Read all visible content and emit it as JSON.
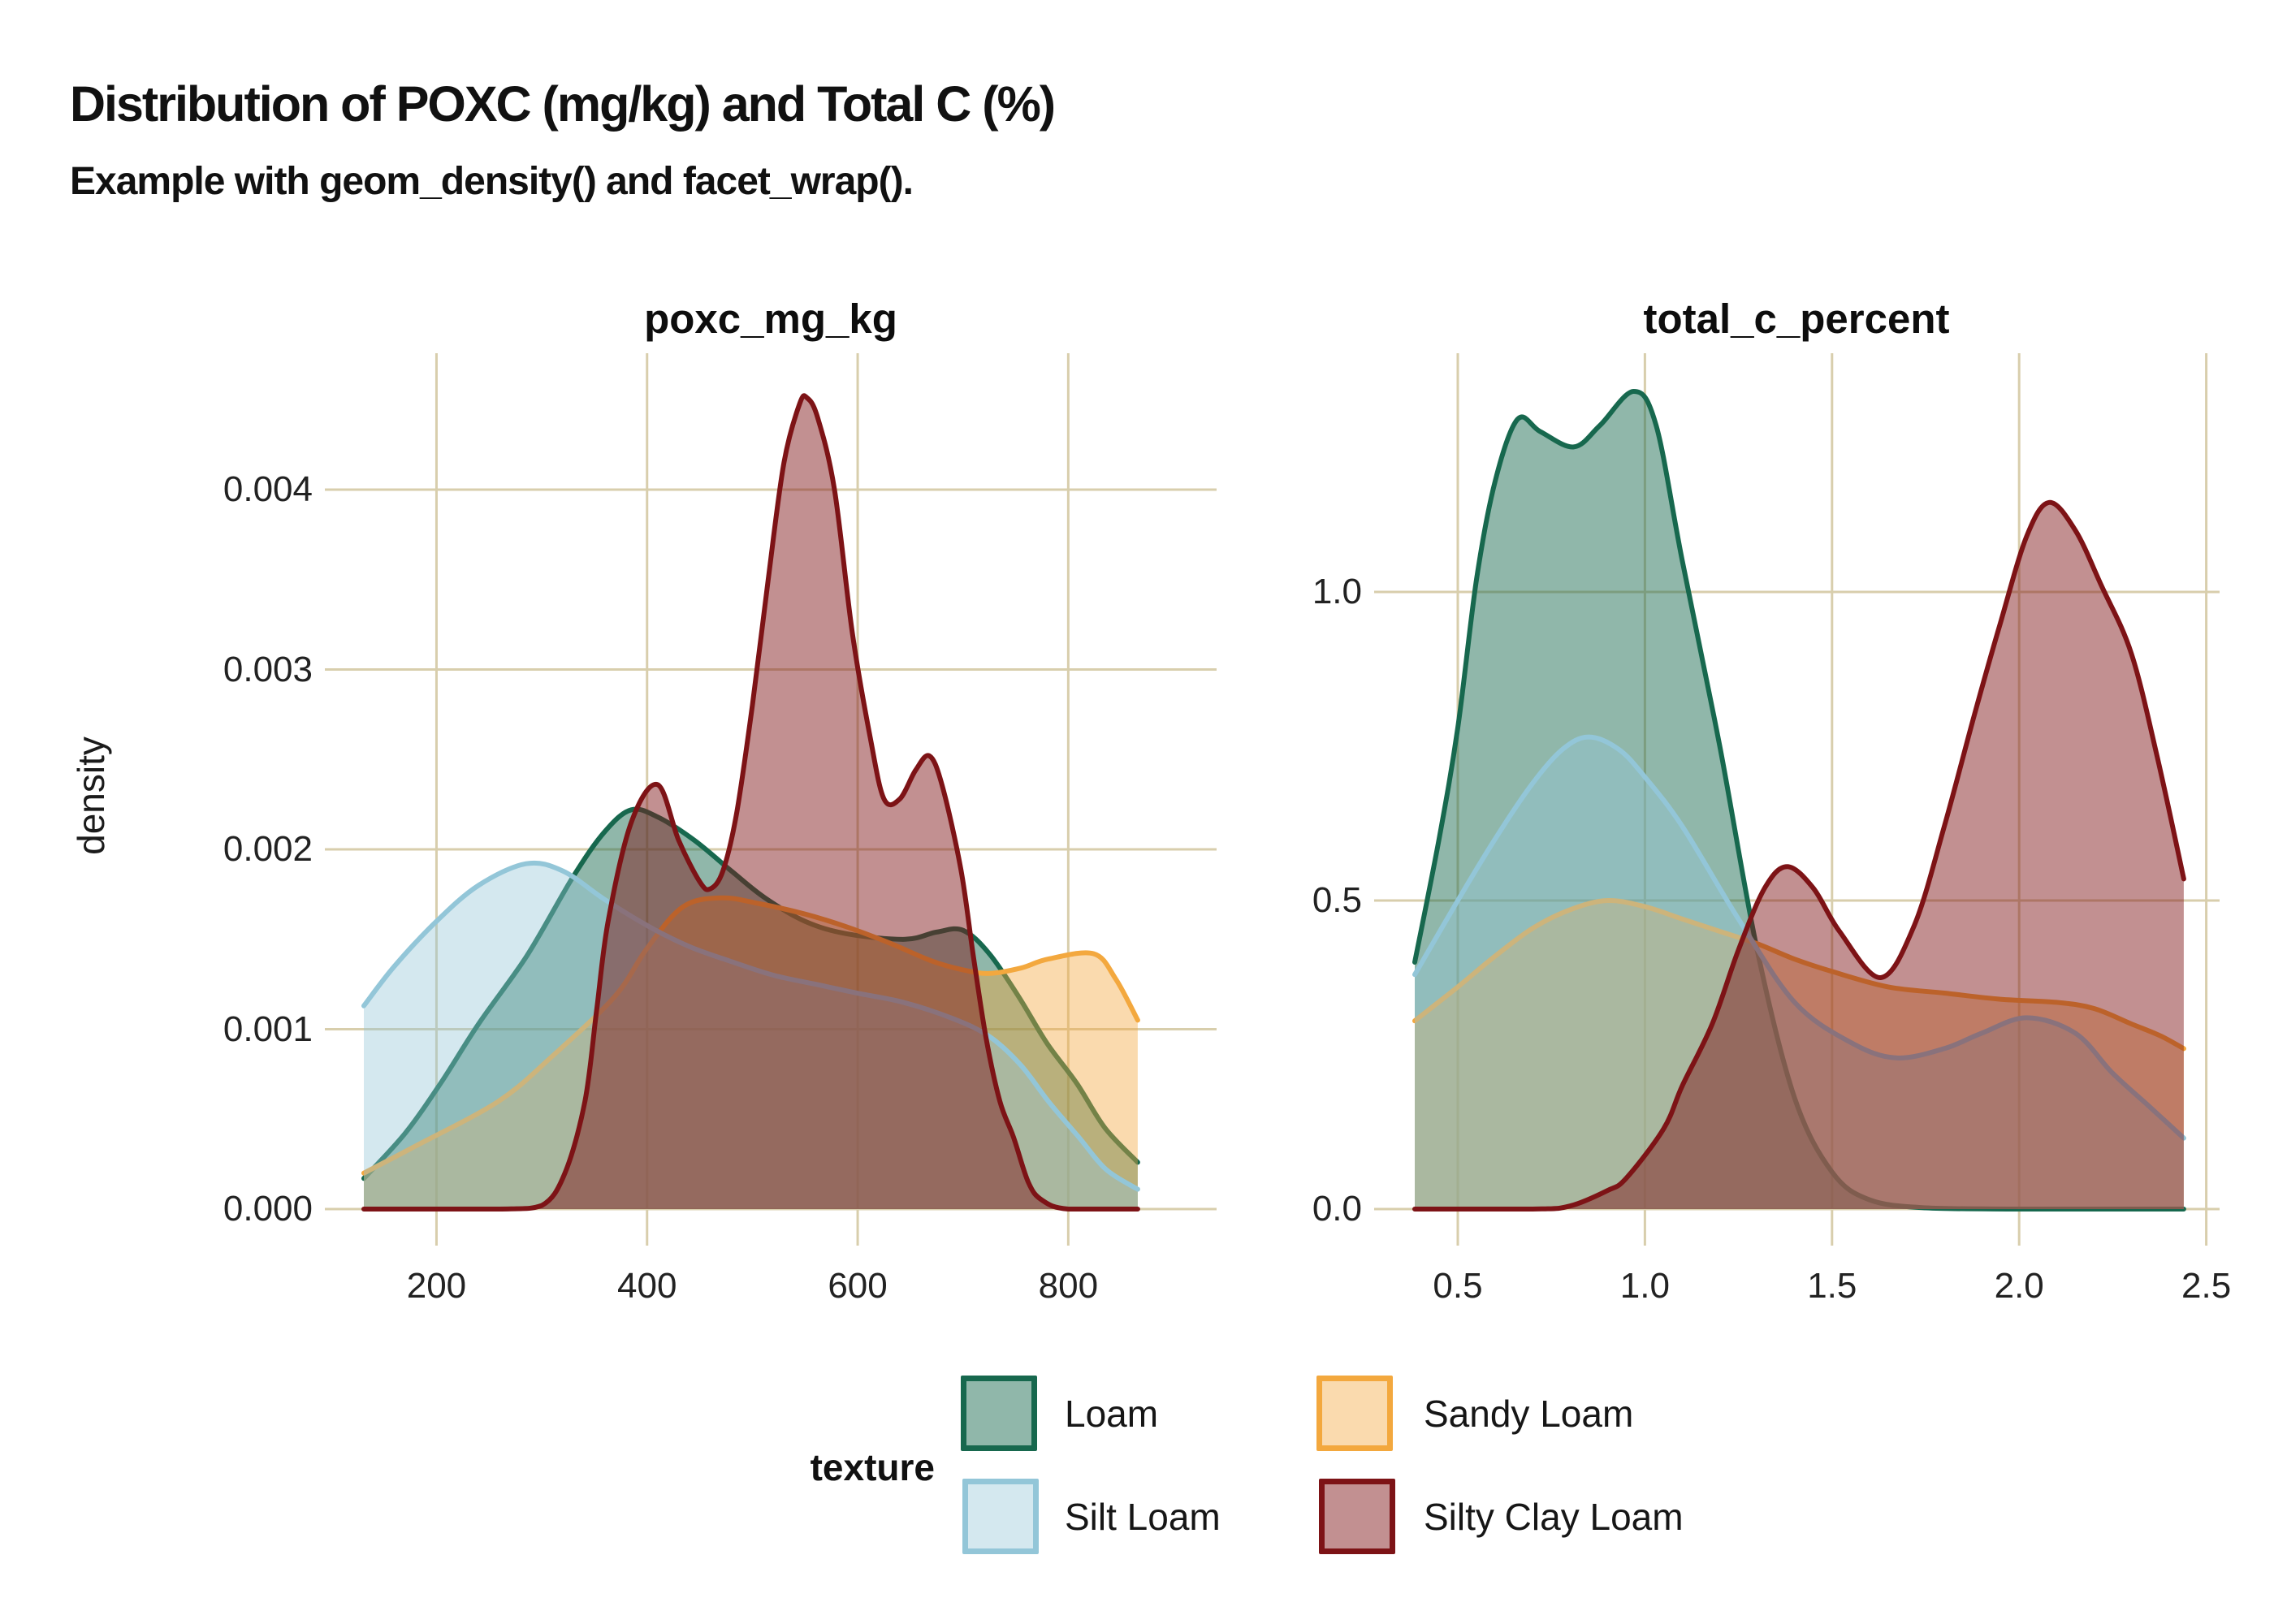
{
  "header": {
    "title": "Distribution of POXC (mg/kg) and Total C (%)",
    "subtitle": "Example with geom_density() and facet_wrap()."
  },
  "y_axis_title": "density",
  "colors": {
    "background": "#ffffff",
    "gridline": "#d8ceac",
    "text": "#1c1c1c",
    "title_text": "#111111"
  },
  "series_styles": {
    "Loam": {
      "stroke": "#17684e",
      "fill": "rgba(23,104,78,0.48)"
    },
    "Sandy Loam": {
      "stroke": "#f3a83e",
      "fill": "rgba(243,168,62,0.42)"
    },
    "Silt Loam": {
      "stroke": "#93c6d8",
      "fill": "rgba(147,198,216,0.40)"
    },
    "Silty Clay Loam": {
      "stroke": "#7d1316",
      "fill": "rgba(125,19,22,0.47)"
    }
  },
  "legend": {
    "title": "texture",
    "items": [
      {
        "label": "Loam",
        "stroke": "#17684e",
        "fill": "rgba(23,104,78,0.48)"
      },
      {
        "label": "Silt Loam",
        "stroke": "#93c6d8",
        "fill": "rgba(147,198,216,0.40)"
      },
      {
        "label": "Sandy Loam",
        "stroke": "#f3a83e",
        "fill": "rgba(243,168,62,0.42)"
      },
      {
        "label": "Silty Clay Loam",
        "stroke": "#7d1316",
        "fill": "rgba(125,19,22,0.47)"
      }
    ]
  },
  "chart_data": {
    "type": "area",
    "title": "Distribution of POXC (mg/kg) and Total C (%)",
    "subtitle": "Example with geom_density() and facet_wrap().",
    "ylabel": "density",
    "legend_title": "texture",
    "legend_position": "bottom",
    "grid": "on",
    "draw_order": [
      "Loam",
      "Sandy Loam",
      "Silt Loam",
      "Silty Clay Loam"
    ],
    "facets": [
      {
        "title": "poxc_mg_kg",
        "xlim": [
          131,
          866
        ],
        "ylim": [
          0,
          0.0045
        ],
        "x_ticks": {
          "values": [
            200,
            400,
            600,
            800
          ],
          "labels": [
            "200",
            "400",
            "600",
            "800"
          ]
        },
        "y_ticks": {
          "values": [
            0,
            0.001,
            0.002,
            0.003,
            0.004
          ],
          "labels": [
            "0.000",
            "0.001",
            "0.002",
            "0.003",
            "0.004"
          ]
        },
        "series": [
          {
            "name": "Loam",
            "points": [
              [
                131,
                0.00017
              ],
              [
                170,
                0.00042
              ],
              [
                204,
                0.0007
              ],
              [
                240,
                0.00103
              ],
              [
                286,
                0.00141
              ],
              [
                330,
                0.00185
              ],
              [
                360,
                0.0021
              ],
              [
                385,
                0.00222
              ],
              [
                410,
                0.00218
              ],
              [
                445,
                0.00205
              ],
              [
                480,
                0.00188
              ],
              [
                512,
                0.00173
              ],
              [
                550,
                0.0016
              ],
              [
                590,
                0.00153
              ],
              [
                645,
                0.0015
              ],
              [
                675,
                0.00154
              ],
              [
                700,
                0.00155
              ],
              [
                725,
                0.00142
              ],
              [
                753,
                0.00118
              ],
              [
                780,
                0.00092
              ],
              [
                808,
                0.0007
              ],
              [
                835,
                0.00045
              ],
              [
                866,
                0.00026
              ]
            ]
          },
          {
            "name": "Sandy Loam",
            "points": [
              [
                131,
                0.0002
              ],
              [
                180,
                0.00035
              ],
              [
                259,
                0.0006
              ],
              [
                310,
                0.00085
              ],
              [
                369,
                0.00118
              ],
              [
                400,
                0.00145
              ],
              [
                434,
                0.00168
              ],
              [
                470,
                0.00173
              ],
              [
                505,
                0.0017
              ],
              [
                550,
                0.00164
              ],
              [
                589,
                0.00157
              ],
              [
                630,
                0.00148
              ],
              [
                670,
                0.00138
              ],
              [
                700,
                0.00133
              ],
              [
                725,
                0.00131
              ],
              [
                755,
                0.00134
              ],
              [
                781,
                0.00139
              ],
              [
                824,
                0.00142
              ],
              [
                845,
                0.00128
              ],
              [
                866,
                0.00105
              ]
            ]
          },
          {
            "name": "Silt Loam",
            "points": [
              [
                131,
                0.00113
              ],
              [
                160,
                0.00135
              ],
              [
                200,
                0.0016
              ],
              [
                240,
                0.0018
              ],
              [
                285,
                0.00192
              ],
              [
                320,
                0.00188
              ],
              [
                360,
                0.00172
              ],
              [
                402,
                0.00157
              ],
              [
                440,
                0.00146
              ],
              [
                478,
                0.00138
              ],
              [
                520,
                0.0013
              ],
              [
                560,
                0.00125
              ],
              [
                600,
                0.0012
              ],
              [
                643,
                0.00115
              ],
              [
                690,
                0.00106
              ],
              [
                725,
                0.00096
              ],
              [
                755,
                0.0008
              ],
              [
                781,
                0.0006
              ],
              [
                810,
                0.0004
              ],
              [
                836,
                0.00022
              ],
              [
                866,
                0.00011
              ]
            ]
          },
          {
            "name": "Silty Clay Loam",
            "points": [
              [
                131,
                0
              ],
              [
                260,
                0
              ],
              [
                300,
                2e-05
              ],
              [
                322,
                0.0002
              ],
              [
                341,
                0.0006
              ],
              [
                352,
                0.0011
              ],
              [
                363,
                0.0016
              ],
              [
                385,
                0.00215
              ],
              [
                410,
                0.00236
              ],
              [
                430,
                0.00205
              ],
              [
                450,
                0.00182
              ],
              [
                460,
                0.00178
              ],
              [
                472,
                0.00188
              ],
              [
                485,
                0.0022
              ],
              [
                500,
                0.0028
              ],
              [
                515,
                0.0035
              ],
              [
                530,
                0.00415
              ],
              [
                545,
                0.00448
              ],
              [
                552,
                0.00451
              ],
              [
                562,
                0.0044
              ],
              [
                578,
                0.004
              ],
              [
                595,
                0.0032
              ],
              [
                612,
                0.00262
              ],
              [
                625,
                0.00228
              ],
              [
                640,
                0.00228
              ],
              [
                655,
                0.00244
              ],
              [
                668,
                0.00252
              ],
              [
                680,
                0.00236
              ],
              [
                698,
                0.00189
              ],
              [
                710,
                0.0014
              ],
              [
                722,
                0.00095
              ],
              [
                735,
                0.0006
              ],
              [
                748,
                0.0004
              ],
              [
                762,
                0.00015
              ],
              [
                775,
                5e-05
              ],
              [
                800,
                0
              ],
              [
                866,
                0
              ]
            ]
          }
        ]
      },
      {
        "title": "total_c_percent",
        "xlim": [
          0.385,
          2.44
        ],
        "ylim": [
          0,
          1.4
        ],
        "x_ticks": {
          "values": [
            0.5,
            1.0,
            1.5,
            2.0,
            2.5
          ],
          "labels": [
            "0.5",
            "1.0",
            "1.5",
            "2.0",
            "2.5"
          ]
        },
        "y_ticks": {
          "values": [
            0,
            0.5,
            1.0
          ],
          "labels": [
            "0.0",
            "0.5",
            "1.0"
          ]
        },
        "series": [
          {
            "name": "Loam",
            "points": [
              [
                0.385,
                0.4
              ],
              [
                0.45,
                0.6
              ],
              [
                0.5,
                0.78
              ],
              [
                0.55,
                1.02
              ],
              [
                0.6,
                1.18
              ],
              [
                0.66,
                1.28
              ],
              [
                0.72,
                1.26
              ],
              [
                0.81,
                1.235
              ],
              [
                0.88,
                1.27
              ],
              [
                0.97,
                1.325
              ],
              [
                1.03,
                1.27
              ],
              [
                1.1,
                1.05
              ],
              [
                1.2,
                0.75
              ],
              [
                1.3,
                0.42
              ],
              [
                1.4,
                0.18
              ],
              [
                1.5,
                0.06
              ],
              [
                1.6,
                0.015
              ],
              [
                1.75,
                0.002
              ],
              [
                2.0,
                0
              ],
              [
                2.44,
                0
              ]
            ]
          },
          {
            "name": "Sandy Loam",
            "points": [
              [
                0.385,
                0.305
              ],
              [
                0.5,
                0.36
              ],
              [
                0.6,
                0.41
              ],
              [
                0.7,
                0.455
              ],
              [
                0.8,
                0.485
              ],
              [
                0.9,
                0.5
              ],
              [
                1.0,
                0.49
              ],
              [
                1.1,
                0.47
              ],
              [
                1.2,
                0.45
              ],
              [
                1.3,
                0.43
              ],
              [
                1.4,
                0.405
              ],
              [
                1.5,
                0.385
              ],
              [
                1.65,
                0.36
              ],
              [
                1.8,
                0.35
              ],
              [
                1.95,
                0.34
              ],
              [
                2.1,
                0.335
              ],
              [
                2.2,
                0.325
              ],
              [
                2.3,
                0.3
              ],
              [
                2.38,
                0.28
              ],
              [
                2.44,
                0.26
              ]
            ]
          },
          {
            "name": "Silt Loam",
            "points": [
              [
                0.385,
                0.38
              ],
              [
                0.5,
                0.5
              ],
              [
                0.6,
                0.6
              ],
              [
                0.7,
                0.69
              ],
              [
                0.78,
                0.745
              ],
              [
                0.85,
                0.765
              ],
              [
                0.93,
                0.745
              ],
              [
                1.0,
                0.7
              ],
              [
                1.1,
                0.62
              ],
              [
                1.25,
                0.47
              ],
              [
                1.4,
                0.335
              ],
              [
                1.55,
                0.27
              ],
              [
                1.67,
                0.245
              ],
              [
                1.8,
                0.26
              ],
              [
                1.9,
                0.285
              ],
              [
                2.02,
                0.31
              ],
              [
                2.15,
                0.285
              ],
              [
                2.25,
                0.22
              ],
              [
                2.35,
                0.165
              ],
              [
                2.44,
                0.115
              ]
            ]
          },
          {
            "name": "Silty Clay Loam",
            "points": [
              [
                0.385,
                0
              ],
              [
                0.7,
                0
              ],
              [
                0.8,
                0.005
              ],
              [
                0.9,
                0.03
              ],
              [
                0.95,
                0.05
              ],
              [
                1.05,
                0.13
              ],
              [
                1.1,
                0.2
              ],
              [
                1.18,
                0.3
              ],
              [
                1.25,
                0.42
              ],
              [
                1.32,
                0.52
              ],
              [
                1.38,
                0.555
              ],
              [
                1.45,
                0.52
              ],
              [
                1.52,
                0.45
              ],
              [
                1.63,
                0.375
              ],
              [
                1.72,
                0.46
              ],
              [
                1.8,
                0.62
              ],
              [
                1.88,
                0.8
              ],
              [
                1.95,
                0.95
              ],
              [
                2.02,
                1.09
              ],
              [
                2.08,
                1.145
              ],
              [
                2.15,
                1.1
              ],
              [
                2.22,
                1.01
              ],
              [
                2.3,
                0.9
              ],
              [
                2.37,
                0.73
              ],
              [
                2.44,
                0.535
              ]
            ]
          }
        ]
      }
    ]
  }
}
